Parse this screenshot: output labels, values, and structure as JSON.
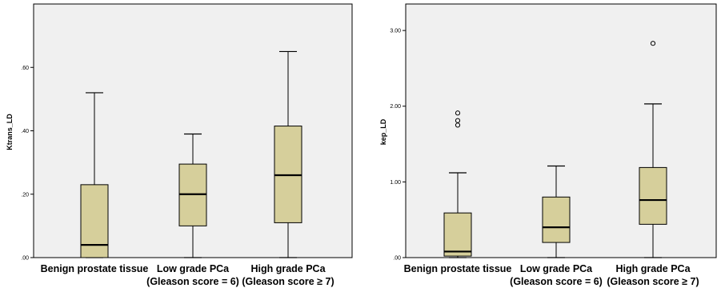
{
  "chart_data": [
    {
      "type": "box",
      "title": "",
      "xlabel": "",
      "ylabel": "Ktrans_LD",
      "ylim": [
        0,
        0.8
      ],
      "yticks": [
        {
          "value": 0.0,
          "label": ".00"
        },
        {
          "value": 0.2,
          "label": ".20"
        },
        {
          "value": 0.4,
          "label": ".40"
        },
        {
          "value": 0.6,
          "label": ".60"
        }
      ],
      "grid": false,
      "categories": [
        [
          "Benign prostate tissue"
        ],
        [
          "Low grade PCa",
          "(Gleason score = 6)"
        ],
        [
          "High grade PCa",
          "(Gleason score ≥ 7)"
        ]
      ],
      "boxes": [
        {
          "min": 0.0,
          "q1": 0.0,
          "median": 0.04,
          "q3": 0.23,
          "max": 0.52,
          "outliers": []
        },
        {
          "min": 0.0,
          "q1": 0.1,
          "median": 0.2,
          "q3": 0.295,
          "max": 0.39,
          "outliers": []
        },
        {
          "min": 0.0,
          "q1": 0.11,
          "median": 0.26,
          "q3": 0.415,
          "max": 0.65,
          "outliers": []
        }
      ],
      "colors": {
        "box": "#d6cf9b",
        "background": "#f0f0f0"
      }
    },
    {
      "type": "box",
      "title": "",
      "xlabel": "",
      "ylabel": "kep_LD",
      "ylim": [
        0,
        3.35
      ],
      "yticks": [
        {
          "value": 0,
          "label": ".00"
        },
        {
          "value": 1,
          "label": "1.00"
        },
        {
          "value": 2,
          "label": "2.00"
        },
        {
          "value": 3,
          "label": "3.00"
        }
      ],
      "grid": false,
      "categories": [
        [
          "Benign prostate tissue"
        ],
        [
          "Low grade PCa",
          "(Gleason score = 6)"
        ],
        [
          "High grade PCa",
          "(Gleason score ≥ 7)"
        ]
      ],
      "boxes": [
        {
          "min": 0.0,
          "q1": 0.02,
          "median": 0.08,
          "q3": 0.59,
          "max": 1.12,
          "outliers": [
            1.75,
            1.81,
            1.91
          ]
        },
        {
          "min": 0.0,
          "q1": 0.2,
          "median": 0.4,
          "q3": 0.8,
          "max": 1.21,
          "outliers": []
        },
        {
          "min": 0.0,
          "q1": 0.44,
          "median": 0.76,
          "q3": 1.19,
          "max": 2.03,
          "outliers": [
            2.83
          ]
        }
      ],
      "colors": {
        "box": "#d6cf9b",
        "background": "#f0f0f0"
      }
    }
  ]
}
